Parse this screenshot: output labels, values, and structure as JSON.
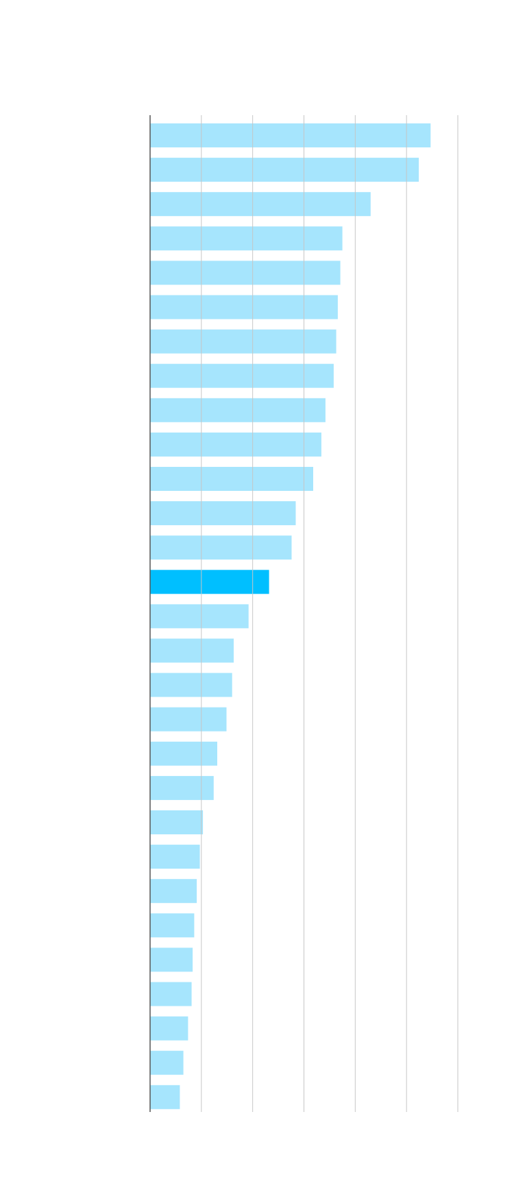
{
  "chart_data": {
    "type": "bar",
    "orientation": "horizontal",
    "title": "",
    "xlabel": "",
    "ylabel": "",
    "xlim": [
      0,
      6
    ],
    "gridlines": [
      1,
      2,
      3,
      4,
      5,
      6
    ],
    "grid": true,
    "tick_labels_visible": false,
    "values": [
      5.47,
      5.24,
      4.3,
      3.75,
      3.71,
      3.66,
      3.63,
      3.58,
      3.42,
      3.34,
      3.18,
      2.84,
      2.76,
      2.32,
      1.92,
      1.63,
      1.6,
      1.49,
      1.31,
      1.24,
      1.03,
      0.97,
      0.91,
      0.86,
      0.83,
      0.81,
      0.74,
      0.65,
      0.58
    ],
    "highlight_index": 13,
    "colors": {
      "bar": "#a6e5fd",
      "highlight": "#00bfff",
      "grid": "#c6c6c6",
      "axis": "#555555",
      "background": "#ffffff"
    }
  }
}
